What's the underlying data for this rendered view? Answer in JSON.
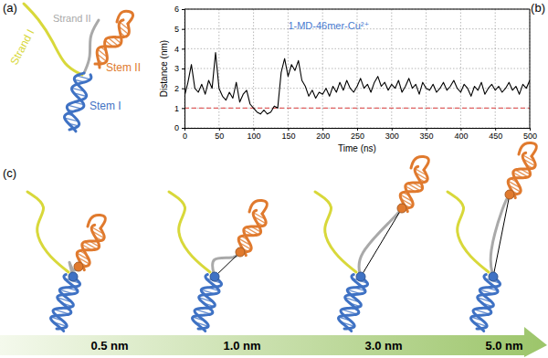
{
  "panels": {
    "a": {
      "label": "(a)",
      "strand_1": "Strand I",
      "strand_2": "Strand II",
      "stem_2": "Stem II",
      "stem_1": "Stem I"
    },
    "b": {
      "label": "(b)"
    },
    "c": {
      "label": "(c)",
      "distances": [
        "0.5 nm",
        "1.0 nm",
        "3.0 nm",
        "5.0 nm"
      ]
    }
  },
  "chart_data": {
    "type": "line",
    "x_label": "Time (ns)",
    "y_label": "Distance (nm)",
    "x": [
      0,
      5,
      10,
      15,
      20,
      25,
      30,
      35,
      40,
      45,
      50,
      55,
      60,
      65,
      70,
      75,
      80,
      85,
      90,
      95,
      100,
      105,
      110,
      115,
      120,
      125,
      130,
      135,
      140,
      145,
      150,
      155,
      160,
      165,
      170,
      175,
      180,
      185,
      190,
      195,
      200,
      205,
      210,
      215,
      220,
      225,
      230,
      235,
      240,
      245,
      250,
      255,
      260,
      265,
      270,
      275,
      280,
      285,
      290,
      295,
      300,
      305,
      310,
      315,
      320,
      325,
      330,
      335,
      340,
      345,
      350,
      355,
      360,
      365,
      370,
      375,
      380,
      385,
      390,
      395,
      400,
      405,
      410,
      415,
      420,
      425,
      430,
      435,
      440,
      445,
      450,
      455,
      460,
      465,
      470,
      475,
      480,
      485,
      490,
      495,
      500
    ],
    "series": [
      {
        "name": "1-MD-46mer-Cu²⁺",
        "color": "#000000",
        "values": [
          1.6,
          2.3,
          3.2,
          2.0,
          1.8,
          2.2,
          1.7,
          2.4,
          2.0,
          3.8,
          2.0,
          1.6,
          1.4,
          1.8,
          1.5,
          2.3,
          1.3,
          1.7,
          1.9,
          1.2,
          1.0,
          0.8,
          0.7,
          0.9,
          0.7,
          0.8,
          1.1,
          1.0,
          2.8,
          3.5,
          2.6,
          3.2,
          2.9,
          3.4,
          2.4,
          2.1,
          1.6,
          1.9,
          1.5,
          1.8,
          1.7,
          2.0,
          1.6,
          2.1,
          1.8,
          2.3,
          1.9,
          2.4,
          2.0,
          1.8,
          2.1,
          2.5,
          2.0,
          2.2,
          1.8,
          2.3,
          2.6,
          2.1,
          2.3,
          1.9,
          2.2,
          2.0,
          2.4,
          1.8,
          2.1,
          2.5,
          2.0,
          2.2,
          1.7,
          2.3,
          2.0,
          1.9,
          2.2,
          1.8,
          2.0,
          2.3,
          1.9,
          2.1,
          2.4,
          2.0,
          1.8,
          2.2,
          2.0,
          1.6,
          2.1,
          1.9,
          2.3,
          1.7,
          2.0,
          2.2,
          1.9,
          2.1,
          1.8,
          2.0,
          2.3,
          1.9,
          2.1,
          1.7,
          2.2,
          2.0,
          2.4
        ]
      }
    ],
    "xlim": [
      0,
      500
    ],
    "xticks": [
      0,
      50,
      100,
      150,
      200,
      250,
      300,
      350,
      400,
      450,
      500
    ],
    "ylim": [
      0,
      6
    ],
    "yticks": [
      0,
      1,
      2,
      3,
      4,
      5,
      6
    ],
    "grid": true,
    "reference_line": {
      "value": 1,
      "color": "#e06060",
      "line_style": "dashed"
    }
  }
}
